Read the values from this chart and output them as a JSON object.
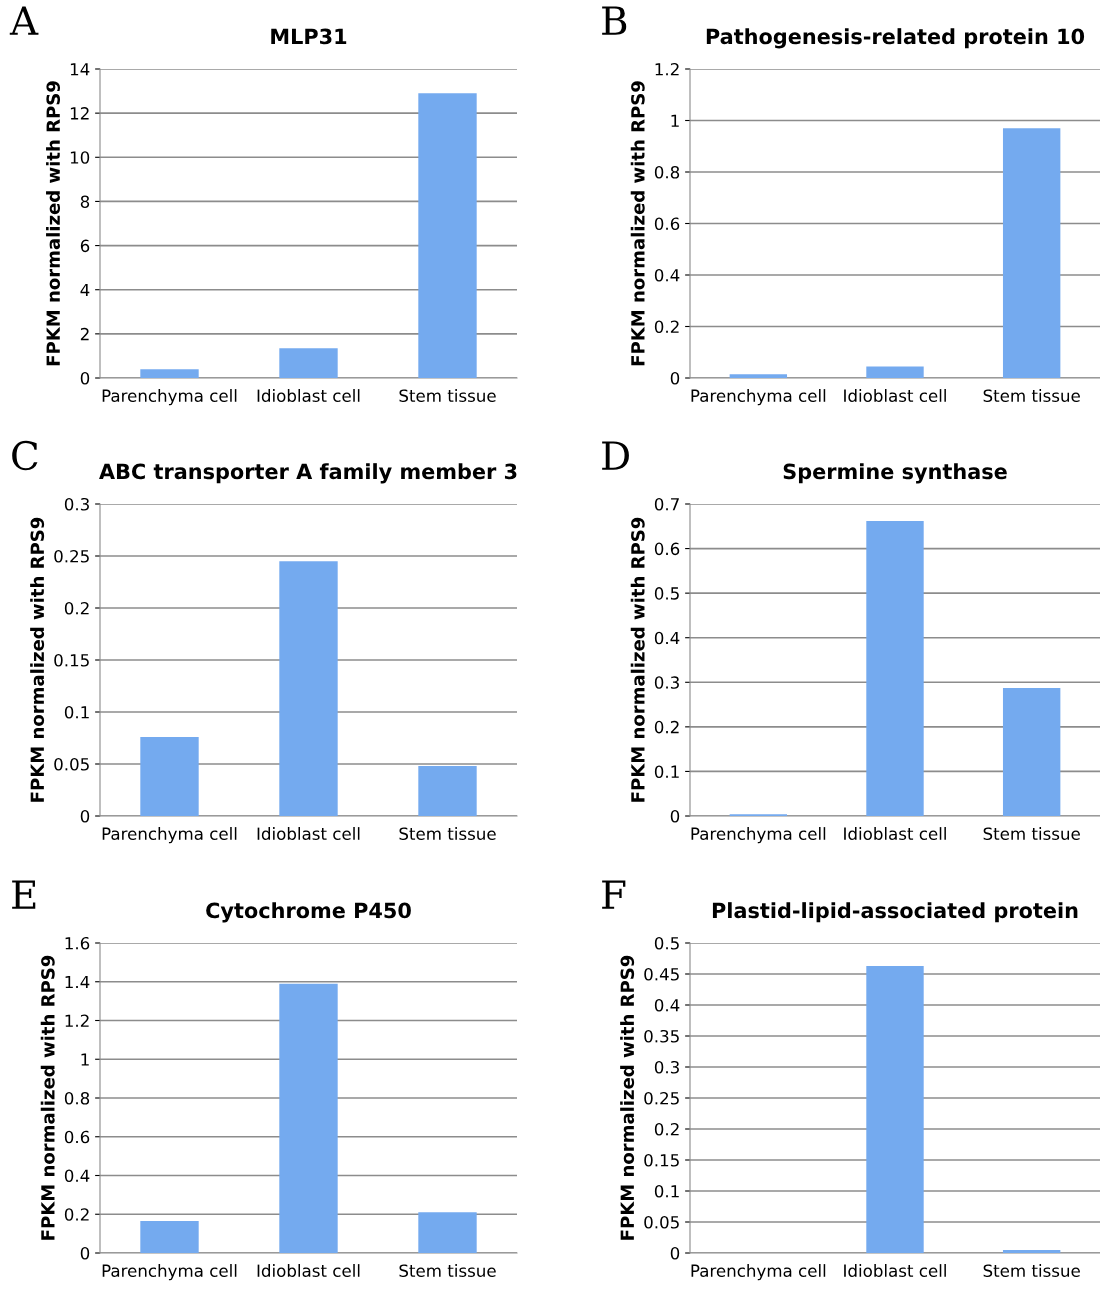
{
  "chart_data": [
    {
      "type": "bar",
      "title": "MLP31",
      "ylabel": "FPKM normalized with RPS9",
      "categories": [
        "Parenchyma cell",
        "Idioblast cell",
        "Stem tissue"
      ],
      "values": [
        0.4,
        1.35,
        12.9
      ],
      "color": "#74aaef",
      "ylim": [
        0,
        14
      ],
      "yticks": [
        0,
        2,
        4,
        6,
        8,
        10,
        12,
        14
      ],
      "grid": "y",
      "annotations": [
        "A"
      ]
    },
    {
      "type": "bar",
      "title": "Pathogenesis-related protein 10",
      "ylabel": "FPKM normalized with RPS9",
      "categories": [
        "Parenchyma cell",
        "Idioblast cell",
        "Stem tissue"
      ],
      "values": [
        0.015,
        0.045,
        0.97
      ],
      "color": "#74aaef",
      "ylim": [
        0,
        1.2
      ],
      "yticks": [
        0,
        0.2,
        0.4,
        0.6,
        0.8,
        1,
        1.2
      ],
      "grid": "y",
      "annotations": [
        "B"
      ]
    },
    {
      "type": "bar",
      "title": "ABC transporter A family member 3",
      "ylabel": "FPKM normalized with RPS9",
      "categories": [
        "Parenchyma cell",
        "Idioblast cell",
        "Stem tissue"
      ],
      "values": [
        0.076,
        0.245,
        0.048
      ],
      "color": "#74aaef",
      "ylim": [
        0,
        0.3
      ],
      "yticks": [
        0,
        0.05,
        0.1,
        0.15,
        0.2,
        0.25,
        0.3
      ],
      "grid": "y",
      "annotations": [
        "C"
      ]
    },
    {
      "type": "bar",
      "title": "Spermine synthase",
      "ylabel": "FPKM normalized with RPS9",
      "categories": [
        "Parenchyma cell",
        "Idioblast cell",
        "Stem tissue"
      ],
      "values": [
        0.004,
        0.662,
        0.287
      ],
      "color": "#74aaef",
      "ylim": [
        0,
        0.7
      ],
      "yticks": [
        0,
        0.1,
        0.2,
        0.3,
        0.4,
        0.5,
        0.6,
        0.7
      ],
      "grid": "y",
      "annotations": [
        "D"
      ]
    },
    {
      "type": "bar",
      "title": "Cytochrome P450",
      "ylabel": "FPKM normalized with RPS9",
      "categories": [
        "Parenchyma cell",
        "Idioblast cell",
        "Stem tissue"
      ],
      "values": [
        0.165,
        1.39,
        0.21
      ],
      "color": "#74aaef",
      "ylim": [
        0,
        1.6
      ],
      "yticks": [
        0,
        0.2,
        0.4,
        0.6,
        0.8,
        1,
        1.2,
        1.4,
        1.6
      ],
      "grid": "y",
      "annotations": [
        "E"
      ]
    },
    {
      "type": "bar",
      "title": "Plastid-lipid-associated protein",
      "ylabel": "FPKM normalized with RPS9",
      "categories": [
        "Parenchyma cell",
        "Idioblast cell",
        "Stem tissue"
      ],
      "values": [
        0,
        0.463,
        0.005
      ],
      "color": "#74aaef",
      "ylim": [
        0,
        0.5
      ],
      "yticks": [
        0,
        0.05,
        0.1,
        0.15,
        0.2,
        0.25,
        0.3,
        0.35,
        0.4,
        0.45,
        0.5
      ],
      "grid": "y",
      "annotations": [
        "F"
      ]
    }
  ]
}
